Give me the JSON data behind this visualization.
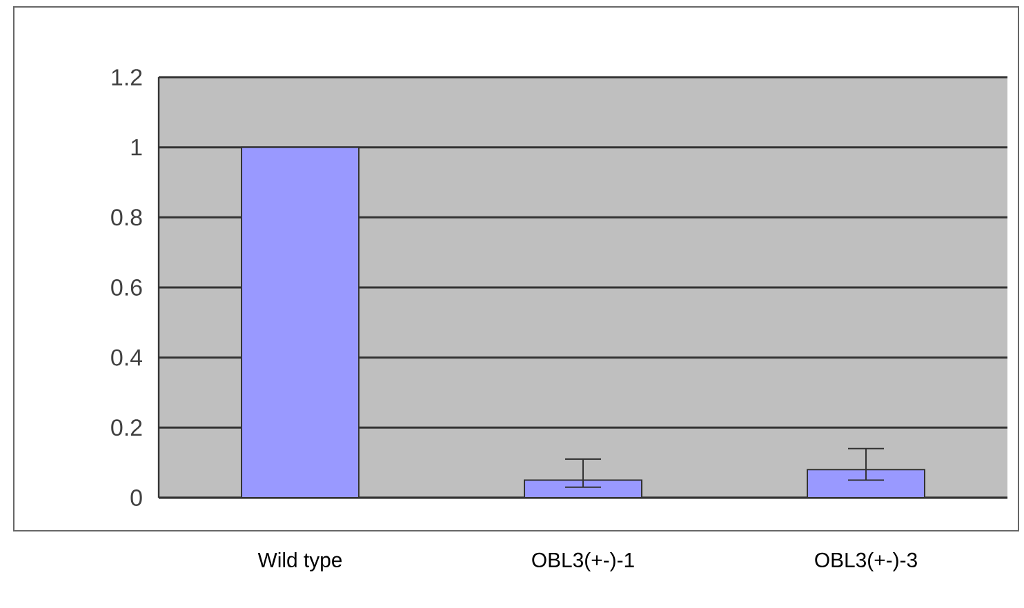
{
  "chart_data": {
    "type": "bar",
    "categories": [
      "Wild type",
      "OBL3(+-)-1",
      "OBL3(+-)-3"
    ],
    "values": [
      1,
      0.05,
      0.08
    ],
    "errors": [
      null,
      [
        0.03,
        0.11
      ],
      [
        0.05,
        0.14
      ]
    ],
    "color": "#9999ff",
    "ylim": [
      0,
      1.2
    ],
    "yticks": [
      0,
      0.2,
      0.4,
      0.6,
      0.8,
      1,
      1.2
    ],
    "grid": "y"
  }
}
